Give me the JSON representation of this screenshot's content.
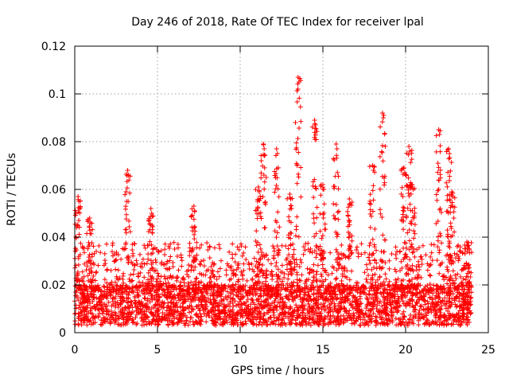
{
  "chart_data": {
    "type": "scatter",
    "title": "Day 246 of 2018, Rate Of TEC Index for receiver lpal",
    "xlabel": "GPS time / hours",
    "ylabel": "ROTI / TECUs",
    "xlim": [
      0,
      25
    ],
    "ylim": [
      0,
      0.12
    ],
    "x_ticks": [
      0,
      5,
      10,
      15,
      20,
      25
    ],
    "x_tick_labels": [
      "0",
      "5",
      "10",
      "15",
      "20",
      "25"
    ],
    "y_ticks": [
      0,
      0.02,
      0.04,
      0.06,
      0.08,
      0.1,
      0.12
    ],
    "y_tick_labels": [
      "0",
      "0.02",
      "0.04",
      "0.06",
      "0.08",
      "0.1",
      "0.12"
    ],
    "grid": true,
    "marker": "+",
    "color": "#ff0000",
    "data_x_range_hours": [
      0,
      24
    ],
    "baseline_band": [
      0.003,
      0.02
    ],
    "peaks": [
      {
        "x": 0.2,
        "y": 0.057
      },
      {
        "x": 0.9,
        "y": 0.048
      },
      {
        "x": 3.2,
        "y": 0.068
      },
      {
        "x": 4.6,
        "y": 0.052
      },
      {
        "x": 7.2,
        "y": 0.053
      },
      {
        "x": 11.1,
        "y": 0.061
      },
      {
        "x": 11.4,
        "y": 0.079
      },
      {
        "x": 12.2,
        "y": 0.077
      },
      {
        "x": 13.0,
        "y": 0.058
      },
      {
        "x": 13.5,
        "y": 0.107
      },
      {
        "x": 14.5,
        "y": 0.089
      },
      {
        "x": 15.0,
        "y": 0.062
      },
      {
        "x": 15.8,
        "y": 0.079
      },
      {
        "x": 16.6,
        "y": 0.056
      },
      {
        "x": 18.0,
        "y": 0.07
      },
      {
        "x": 18.6,
        "y": 0.092
      },
      {
        "x": 19.9,
        "y": 0.069
      },
      {
        "x": 20.2,
        "y": 0.078
      },
      {
        "x": 20.4,
        "y": 0.062
      },
      {
        "x": 22.0,
        "y": 0.085
      },
      {
        "x": 22.6,
        "y": 0.077
      },
      {
        "x": 22.8,
        "y": 0.059
      },
      {
        "x": 23.7,
        "y": 0.038
      }
    ]
  }
}
